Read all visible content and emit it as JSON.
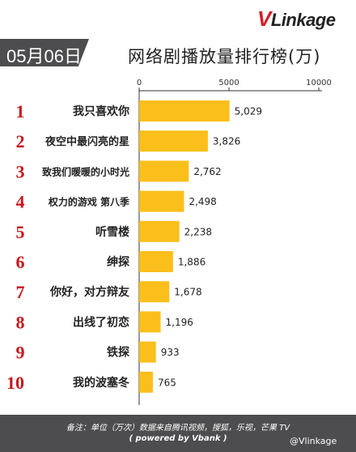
{
  "brand": {
    "logo_v": "V",
    "logo_rest": "Linkage"
  },
  "date": "05月06日",
  "chart_data": {
    "type": "bar",
    "orientation": "horizontal",
    "title": "网络剧播放量排行榜(万)",
    "categories": [
      "我只喜欢你",
      "夜空中最闪亮的星",
      "致我们暖暖的小时光",
      "权力的游戏 第八季",
      "听雪楼",
      "绅探",
      "你好，对方辩友",
      "出线了初恋",
      "铁探",
      "我的波塞冬"
    ],
    "ranks": [
      "1",
      "2",
      "3",
      "4",
      "5",
      "6",
      "7",
      "8",
      "9",
      "10"
    ],
    "values": [
      5029,
      3826,
      2762,
      2498,
      2238,
      1886,
      1678,
      1196,
      933,
      765
    ],
    "value_labels": [
      "5,029",
      "3,826",
      "2,762",
      "2,498",
      "2,238",
      "1,886",
      "1,678",
      "1,196",
      "933",
      "765"
    ],
    "xlim": [
      0,
      10000
    ],
    "xticks": [
      0,
      5000,
      10000
    ],
    "xtick_labels": [
      "0",
      "5000",
      "10000"
    ],
    "bar_color": "#fbbf1c",
    "rank_color": "#c8161d",
    "grid": false
  },
  "footer": {
    "line1": "备注：单位（万次）数据来自腾讯视频，搜狐，乐视，芒果 TV",
    "line2": "( powered by Vbank )"
  },
  "watermark": "@Vlinkage"
}
